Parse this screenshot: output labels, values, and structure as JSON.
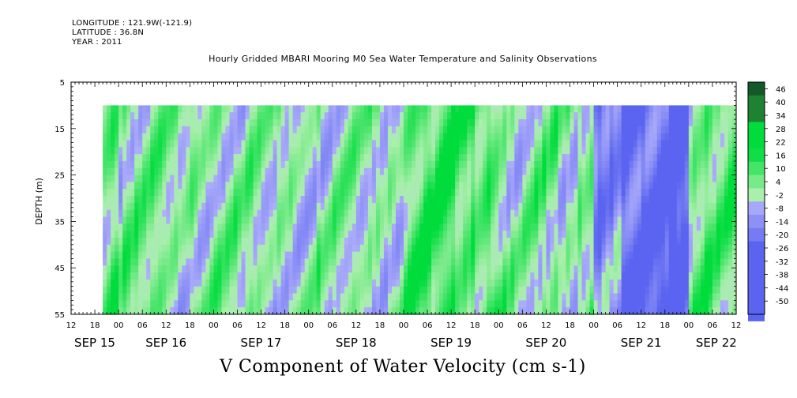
{
  "header": {
    "longitude": "LONGITUDE : 121.9W(-121.9)",
    "latitude": "LATITUDE : 36.8N",
    "year": "YEAR : 2011"
  },
  "chart_data": {
    "type": "heatmap",
    "title": "Hourly Gridded MBARI Mooring M0 Sea Water Temperature and Salinity Observations",
    "variable_label": "V Component of Water Velocity (cm s-1)",
    "ylabel": "DEPTH (m)",
    "ylim": [
      55,
      5
    ],
    "y_ticks": [
      5,
      15,
      25,
      35,
      45,
      55
    ],
    "data_depth_range": [
      10,
      55
    ],
    "x_start": "SEP 15 12:00",
    "x_end": "SEP 22 12:00",
    "data_start": "SEP 15 20:00",
    "data_end": "SEP 22 12:00",
    "hour_tick_labels": [
      "12",
      "18",
      "00",
      "06",
      "12",
      "18",
      "00",
      "06",
      "12",
      "18",
      "00",
      "06",
      "12",
      "18",
      "00",
      "06",
      "12",
      "18",
      "00",
      "06",
      "12",
      "18",
      "00",
      "06",
      "12",
      "18",
      "00",
      "06",
      "12"
    ],
    "day_labels": [
      "SEP 15",
      "SEP 16",
      "SEP 17",
      "SEP 18",
      "SEP 19",
      "SEP 20",
      "SEP 21",
      "SEP 22"
    ],
    "colorbar": {
      "labels": [
        46,
        40,
        34,
        28,
        22,
        16,
        10,
        4,
        -2,
        -8,
        -14,
        -20,
        -26,
        -32,
        -38,
        -44,
        -50
      ],
      "range": [
        -50,
        50
      ],
      "negative_color": "#aaaaff",
      "positive_color": "#00dd55"
    },
    "column_profile_note": "approximate dominant V (cm/s) per day segment",
    "segments": [
      {
        "day": "SEP 15",
        "v_mean": 8
      },
      {
        "day": "SEP 16",
        "v_mean": 4
      },
      {
        "day": "SEP 17",
        "v_mean": 2
      },
      {
        "day": "SEP 18",
        "v_mean": 3
      },
      {
        "day": "SEP 19",
        "v_mean": 12
      },
      {
        "day": "SEP 20",
        "v_mean": 6
      },
      {
        "day": "SEP 21",
        "v_mean": -14
      },
      {
        "day": "SEP 22",
        "v_mean": 8
      }
    ]
  }
}
